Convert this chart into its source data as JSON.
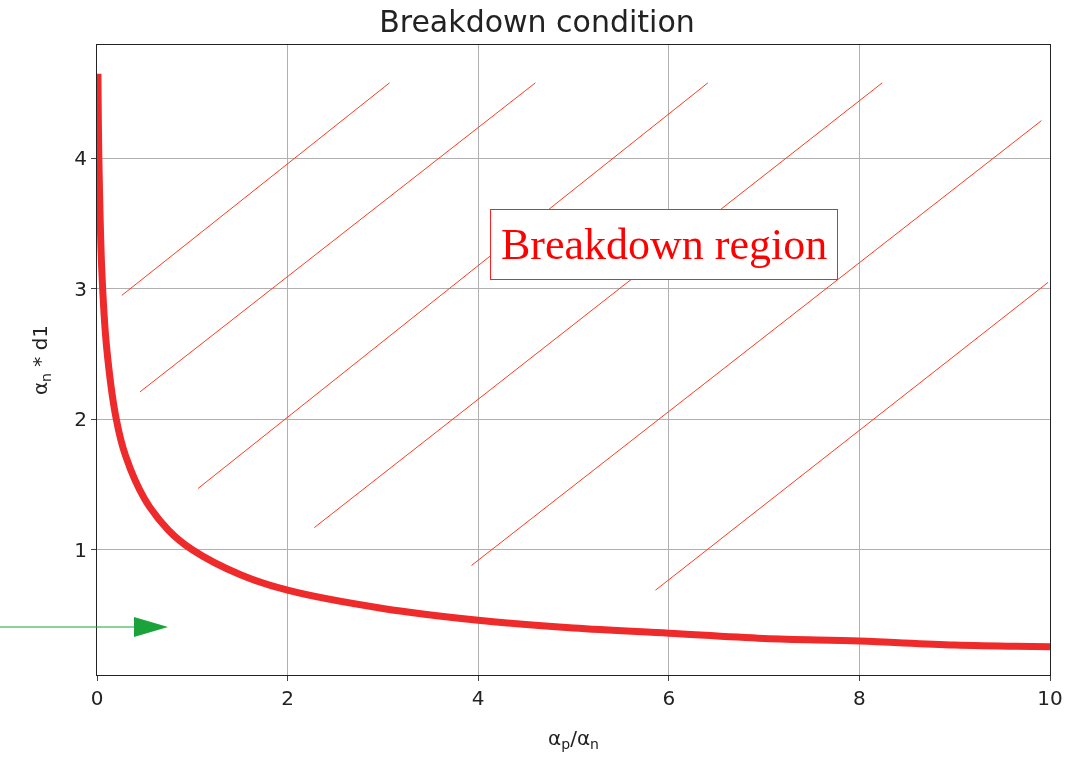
{
  "chart_data": {
    "type": "line",
    "title": "Breakdown condition",
    "xlabel": "α$_{p}$/α$_{n}$",
    "ylabel": "α$_{n}$ * d1",
    "x": [
      0.01,
      0.02,
      0.05,
      0.1,
      0.2,
      0.3,
      0.5,
      0.75,
      1,
      1.5,
      2,
      3,
      4,
      5,
      6,
      7,
      8,
      9,
      10
    ],
    "series": [
      {
        "color": "#ee2a2a",
        "values": [
          4.65,
          3.99,
          3.15,
          2.56,
          2.01,
          1.72,
          1.39,
          1.15,
          1.0,
          0.81,
          0.69,
          0.55,
          0.46,
          0.4,
          0.36,
          0.32,
          0.3,
          0.27,
          0.256
        ]
      },
      {
        "color": "#ff3b1f",
        "x": [
          0.26,
          3.07
        ],
        "values": [
          2.95,
          4.58
        ]
      },
      {
        "color": "#ff3b1f",
        "x": [
          0.45,
          4.6
        ],
        "values": [
          2.21,
          4.58
        ]
      },
      {
        "color": "#ff3b1f",
        "x": [
          1.06,
          6.41
        ],
        "values": [
          1.47,
          4.58
        ]
      },
      {
        "color": "#ff3b1f",
        "x": [
          2.28,
          8.24
        ],
        "values": [
          1.17,
          4.58
        ]
      },
      {
        "color": "#ff3b1f",
        "x": [
          3.93,
          9.91
        ],
        "values": [
          0.88,
          4.29
        ]
      },
      {
        "color": "#ff3b1f",
        "x": [
          5.86,
          9.98
        ],
        "values": [
          0.69,
          3.05
        ]
      }
    ],
    "xlim": [
      0,
      10
    ],
    "ylim": [
      0.04,
      4.87
    ],
    "xticks": [
      0,
      2,
      4,
      6,
      8,
      10
    ],
    "yticks": [
      1,
      2,
      3,
      4
    ],
    "grid": true,
    "legend": false,
    "marker": "none",
    "line_style": "solid",
    "annotations": [
      "Breakdown region"
    ]
  }
}
